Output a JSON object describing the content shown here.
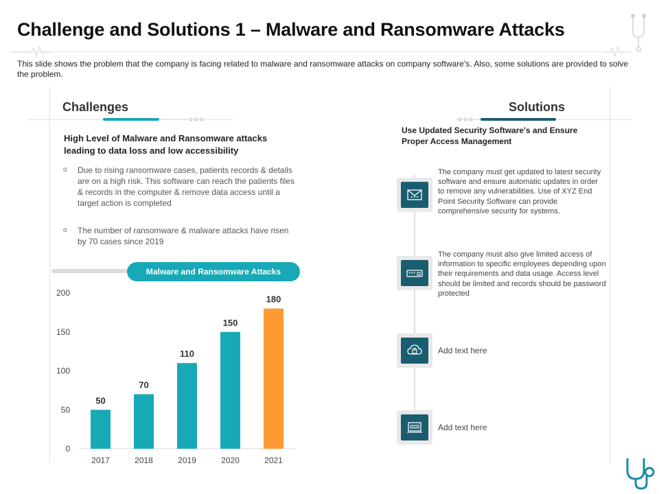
{
  "title": "Challenge and Solutions 1 – Malware and Ransomware Attacks",
  "subtitle": "This slide shows the problem that the company is facing related to malware and ransomware attacks on company software's. Also, some solutions are provided to solve the problem.",
  "colors": {
    "accent_teal": "#17a9b8",
    "accent_orange": "#ff9933",
    "dark_teal": "#1b5d70"
  },
  "challenges": {
    "header": "Challenges",
    "heading": "High Level of Malware and Ransomware attacks leading to data loss and low accessibility",
    "bullets": [
      "Due to rising ransomware cases, patients records & details are on a high risk. This software can reach the patients files & records in the computer & remove data access until a target action is completed",
      "The number of ransomware & malware attacks have risen by 70 cases since 2019"
    ]
  },
  "chart_data": {
    "type": "bar",
    "title": "Malware and Ransomware Attacks",
    "categories": [
      "2017",
      "2018",
      "2019",
      "2020",
      "2021"
    ],
    "values": [
      50,
      70,
      110,
      150,
      180
    ],
    "ylim": [
      0,
      200
    ],
    "yticks": [
      0,
      50,
      100,
      150,
      200
    ],
    "bar_colors": [
      "#17a9b8",
      "#17a9b8",
      "#17a9b8",
      "#17a9b8",
      "#ff9933"
    ],
    "data_labels": true,
    "grid": false,
    "legend": "none"
  },
  "solutions": {
    "header": "Solutions",
    "heading": "Use Updated Security Software's and Ensure Proper Access Management",
    "items": [
      {
        "icon": "security-email-icon",
        "text": "The company must get updated to latest security software and ensure automatic updates in order to remove any vulnerabilities. Use of XYZ End Point Security Software can provide comprehensive security for systems."
      },
      {
        "icon": "password-lock-icon",
        "text": "The company must also give limited access of information to specific employees depending upon their requirements and data usage. Access level should be limited and records should be password protected"
      },
      {
        "icon": "cloud-lock-icon",
        "text": "Add text here"
      },
      {
        "icon": "laptop-password-icon",
        "text": "Add text here"
      }
    ]
  }
}
